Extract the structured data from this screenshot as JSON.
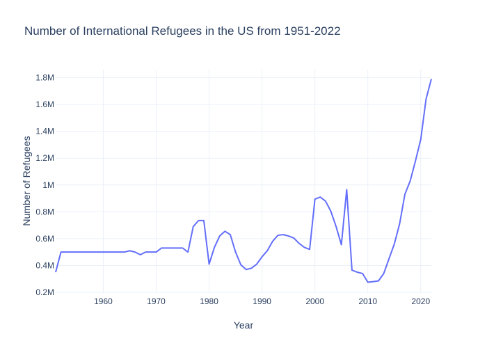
{
  "chart_data": {
    "type": "line",
    "title": "Number of International Refugees in the US from 1951-2022",
    "xlabel": "Year",
    "ylabel": "Number of Refugees",
    "xlim": [
      1951,
      2022
    ],
    "ylim": [
      200000,
      1860000
    ],
    "x_ticks": [
      1960,
      1970,
      1980,
      1990,
      2000,
      2010,
      2020
    ],
    "y_ticks": [
      {
        "value": 200000,
        "label": "0.2M"
      },
      {
        "value": 400000,
        "label": "0.4M"
      },
      {
        "value": 600000,
        "label": "0.6M"
      },
      {
        "value": 800000,
        "label": "0.8M"
      },
      {
        "value": 1000000,
        "label": "1M"
      },
      {
        "value": 1200000,
        "label": "1.2M"
      },
      {
        "value": 1400000,
        "label": "1.4M"
      },
      {
        "value": 1600000,
        "label": "1.6M"
      },
      {
        "value": 1800000,
        "label": "1.8M"
      }
    ],
    "grid": true,
    "legend": "none",
    "series": [
      {
        "color": "#636efa",
        "x": [
          1951,
          1952,
          1953,
          1954,
          1955,
          1956,
          1957,
          1958,
          1959,
          1960,
          1961,
          1962,
          1963,
          1964,
          1965,
          1966,
          1967,
          1968,
          1969,
          1970,
          1971,
          1972,
          1973,
          1974,
          1975,
          1976,
          1977,
          1978,
          1979,
          1980,
          1981,
          1982,
          1983,
          1984,
          1985,
          1986,
          1987,
          1988,
          1989,
          1990,
          1991,
          1992,
          1993,
          1994,
          1995,
          1996,
          1997,
          1998,
          1999,
          2000,
          2001,
          2002,
          2003,
          2004,
          2005,
          2006,
          2007,
          2008,
          2009,
          2010,
          2011,
          2012,
          2013,
          2014,
          2015,
          2016,
          2017,
          2018,
          2019,
          2020,
          2021,
          2022
        ],
        "y": [
          350000,
          500000,
          500000,
          500000,
          500000,
          500000,
          500000,
          500000,
          500000,
          500000,
          500000,
          500000,
          500000,
          500000,
          510000,
          500000,
          480000,
          500000,
          500000,
          500000,
          530000,
          530000,
          530000,
          530000,
          530000,
          500000,
          690000,
          735000,
          735000,
          410000,
          535000,
          620000,
          655000,
          630000,
          500000,
          405000,
          370000,
          380000,
          410000,
          465000,
          510000,
          580000,
          625000,
          630000,
          620000,
          605000,
          565000,
          535000,
          520000,
          895000,
          910000,
          880000,
          805000,
          690000,
          555000,
          965000,
          365000,
          350000,
          340000,
          275000,
          280000,
          285000,
          340000,
          450000,
          560000,
          710000,
          930000,
          1030000,
          1180000,
          1340000,
          1640000,
          1790000
        ]
      }
    ]
  }
}
